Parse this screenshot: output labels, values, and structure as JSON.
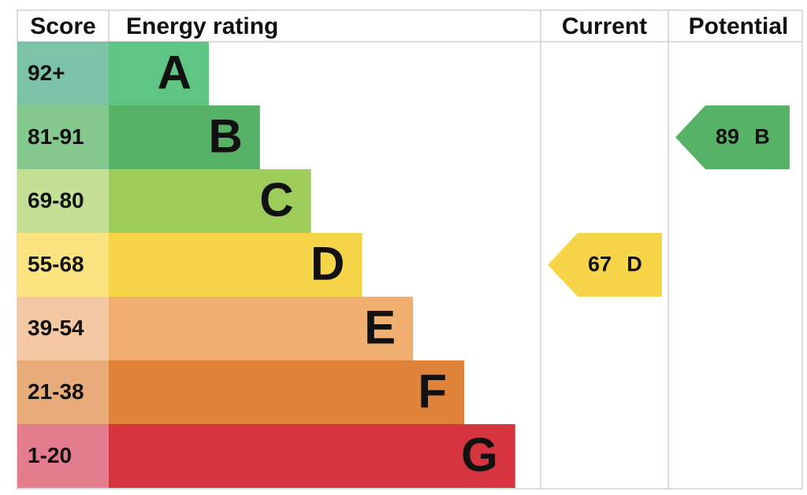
{
  "header": {
    "score": "Score",
    "rating": "Energy rating",
    "current": "Current",
    "potential": "Potential"
  },
  "bands": [
    {
      "score": "92+",
      "letter": "A",
      "color": "#5ec585",
      "score_color": "#7cc2a6"
    },
    {
      "score": "81-91",
      "letter": "B",
      "color": "#55b266",
      "score_color": "#86c98e"
    },
    {
      "score": "69-80",
      "letter": "C",
      "color": "#9dcc5a",
      "score_color": "#c3e095"
    },
    {
      "score": "55-68",
      "letter": "D",
      "color": "#f6d548",
      "score_color": "#fbe480"
    },
    {
      "score": "39-54",
      "letter": "E",
      "color": "#f0ae6f",
      "score_color": "#f5c8a4"
    },
    {
      "score": "21-38",
      "letter": "F",
      "color": "#e0833a",
      "score_color": "#e8ac7a"
    },
    {
      "score": "1-20",
      "letter": "G",
      "color": "#d6343f",
      "score_color": "#e37c8c"
    }
  ],
  "current": {
    "value": 67,
    "letter": "D"
  },
  "potential": {
    "value": 89,
    "letter": "B"
  }
}
